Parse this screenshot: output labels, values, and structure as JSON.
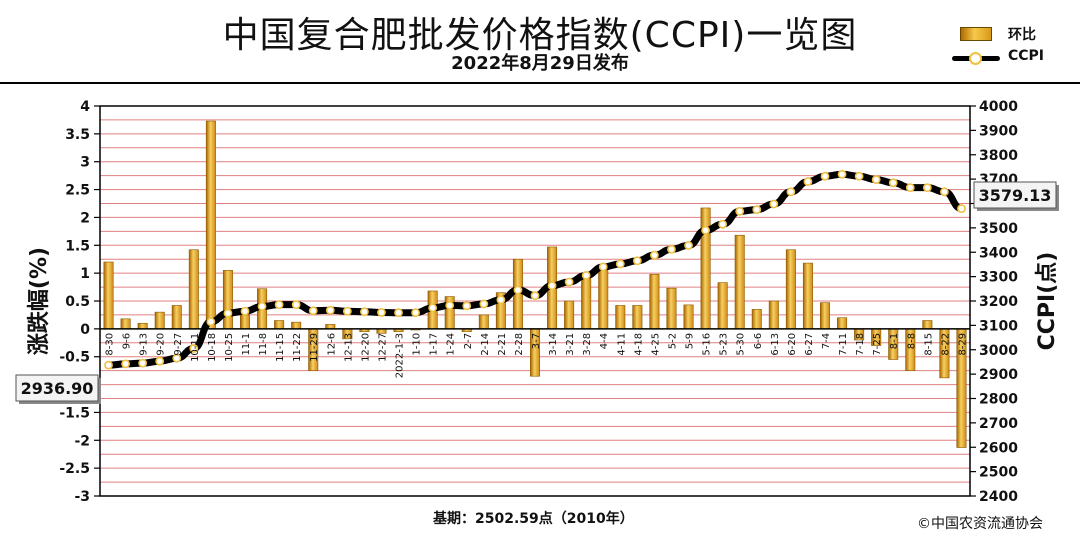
{
  "header": {
    "title": "中国复合肥批发价格指数(CCPI)一览图",
    "subtitle": "2022年8月29日发布"
  },
  "legend": {
    "bar_label": "环比",
    "line_label": "CCPI"
  },
  "footer": {
    "base_text": "基期：2502.59点（2010年）",
    "copyright": "©中国农资流通协会"
  },
  "colors": {
    "plot_bg": "#ffffff",
    "grid": "#e08080",
    "bar_fill": "#e0a030",
    "bar_highlight": "#f7d060",
    "line": "#000000",
    "marker_fill": "#ffffff",
    "marker_stroke": "#f0c040"
  },
  "chart_data": {
    "type": "bar",
    "title": "中国复合肥批发价格指数(CCPI)一览图",
    "subtitle": "2022年8月29日发布",
    "ylabel": "涨跌幅(%)",
    "y2label": "CCPI(点)",
    "ylim": [
      -3,
      4
    ],
    "yticks": [
      "4",
      "3.5",
      "3",
      "2.5",
      "2",
      "1.5",
      "1",
      "0.5",
      "0",
      "-0.5",
      "-1",
      "-1.5",
      "-2",
      "-2.5",
      "-3"
    ],
    "y2lim": [
      2400,
      4000
    ],
    "y2ticks": [
      "4000",
      "3900",
      "3800",
      "3700",
      "3600",
      "3500",
      "3400",
      "3300",
      "3200",
      "3100",
      "3000",
      "2900",
      "2800",
      "2700",
      "2600",
      "2500",
      "2400"
    ],
    "grid": true,
    "legend_position": "top-right",
    "categories": [
      "8-30",
      "9-6",
      "9-13",
      "9-20",
      "9-27",
      "10-11",
      "10-18",
      "10-25",
      "11-1",
      "11-8",
      "11-15",
      "11-22",
      "11-29",
      "12-6",
      "12-13",
      "12-20",
      "12-27",
      "2022-1-3",
      "1-10",
      "1-17",
      "1-24",
      "2-7",
      "2-14",
      "2-21",
      "2-28",
      "3-7",
      "3-14",
      "3-21",
      "3-28",
      "4-4",
      "4-11",
      "4-18",
      "4-25",
      "5-2",
      "5-9",
      "5-16",
      "5-23",
      "5-30",
      "6-6",
      "6-13",
      "6-20",
      "6-27",
      "7-4",
      "7-11",
      "7-18",
      "7-25",
      "8-1",
      "8-8",
      "8-15",
      "8-22",
      "8-29"
    ],
    "series": [
      {
        "name": "环比",
        "type": "bar",
        "values": [
          1.2,
          0.18,
          0.1,
          0.3,
          0.42,
          1.42,
          3.73,
          1.05,
          0.25,
          0.72,
          0.15,
          0.12,
          -0.75,
          0.08,
          -0.18,
          -0.05,
          -0.08,
          -0.05,
          -0.02,
          0.68,
          0.58,
          -0.05,
          0.25,
          0.65,
          1.25,
          -0.85,
          1.47,
          0.5,
          1.0,
          1.1,
          0.42,
          0.42,
          0.98,
          0.73,
          0.43,
          2.17,
          0.83,
          1.68,
          0.35,
          0.5,
          1.42,
          1.18,
          0.47,
          0.2,
          -0.2,
          -0.3,
          -0.55,
          -0.75,
          0.15,
          -0.88,
          -2.13
        ]
      },
      {
        "name": "CCPI",
        "type": "line",
        "values": [
          2936.9,
          2942,
          2945,
          2953,
          2965,
          3005,
          3115,
          3150,
          3158,
          3178,
          3185,
          3185,
          3160,
          3162,
          3158,
          3156,
          3153,
          3152,
          3152,
          3172,
          3182,
          3180,
          3188,
          3205,
          3245,
          3222,
          3263,
          3278,
          3305,
          3340,
          3352,
          3365,
          3388,
          3412,
          3428,
          3490,
          3515,
          3568,
          3575,
          3598,
          3648,
          3690,
          3712,
          3720,
          3712,
          3698,
          3685,
          3665,
          3665,
          3648,
          3579.13
        ]
      }
    ],
    "annotations": [
      "2936.90",
      "3579.13"
    ]
  }
}
